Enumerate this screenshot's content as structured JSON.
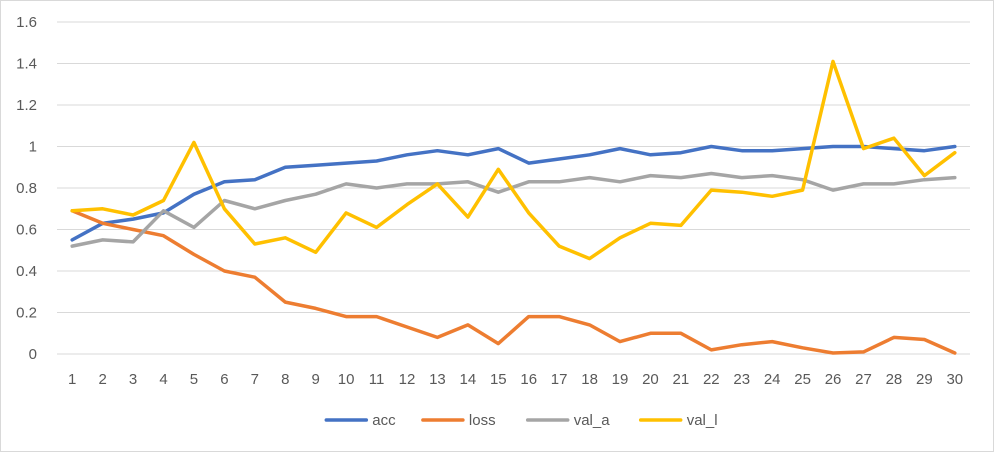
{
  "chart_data": {
    "type": "line",
    "title": "",
    "xlabel": "",
    "ylabel": "",
    "categories": [
      "1",
      "2",
      "3",
      "4",
      "5",
      "6",
      "7",
      "8",
      "9",
      "10",
      "11",
      "12",
      "13",
      "14",
      "15",
      "16",
      "17",
      "18",
      "19",
      "20",
      "21",
      "22",
      "23",
      "24",
      "25",
      "26",
      "27",
      "28",
      "29",
      "30"
    ],
    "ylim": [
      0,
      1.6
    ],
    "y_ticks": [
      "0",
      "0.2",
      "0.4",
      "0.6",
      "0.8",
      "1",
      "1.2",
      "1.4",
      "1.6"
    ],
    "grid": "horizontal",
    "legend_position": "bottom",
    "series": [
      {
        "name": "acc",
        "color": "#4472C4",
        "values": [
          0.55,
          0.63,
          0.65,
          0.68,
          0.77,
          0.83,
          0.84,
          0.9,
          0.91,
          0.92,
          0.93,
          0.96,
          0.98,
          0.96,
          0.99,
          0.92,
          0.94,
          0.96,
          0.99,
          0.96,
          0.97,
          1.0,
          0.98,
          0.98,
          0.99,
          1.0,
          1.0,
          0.99,
          0.98,
          1.0
        ]
      },
      {
        "name": "loss",
        "color": "#ED7D31",
        "values": [
          0.69,
          0.63,
          0.6,
          0.57,
          0.48,
          0.4,
          0.37,
          0.25,
          0.22,
          0.18,
          0.18,
          0.13,
          0.08,
          0.14,
          0.05,
          0.18,
          0.18,
          0.14,
          0.06,
          0.1,
          0.1,
          0.02,
          0.045,
          0.06,
          0.03,
          0.005,
          0.01,
          0.08,
          0.07,
          0.005
        ]
      },
      {
        "name": "val_a",
        "color": "#A5A5A5",
        "values": [
          0.52,
          0.55,
          0.54,
          0.69,
          0.61,
          0.74,
          0.7,
          0.74,
          0.77,
          0.82,
          0.8,
          0.82,
          0.82,
          0.83,
          0.78,
          0.83,
          0.83,
          0.85,
          0.83,
          0.86,
          0.85,
          0.87,
          0.85,
          0.86,
          0.84,
          0.79,
          0.82,
          0.82,
          0.84,
          0.85
        ]
      },
      {
        "name": "val_l",
        "color": "#FFC000",
        "values": [
          0.69,
          0.7,
          0.67,
          0.74,
          1.02,
          0.7,
          0.53,
          0.56,
          0.49,
          0.68,
          0.61,
          0.72,
          0.82,
          0.66,
          0.89,
          0.68,
          0.52,
          0.46,
          0.56,
          0.63,
          0.62,
          0.79,
          0.78,
          0.76,
          0.79,
          1.41,
          0.99,
          1.04,
          0.86,
          0.97
        ]
      }
    ]
  }
}
